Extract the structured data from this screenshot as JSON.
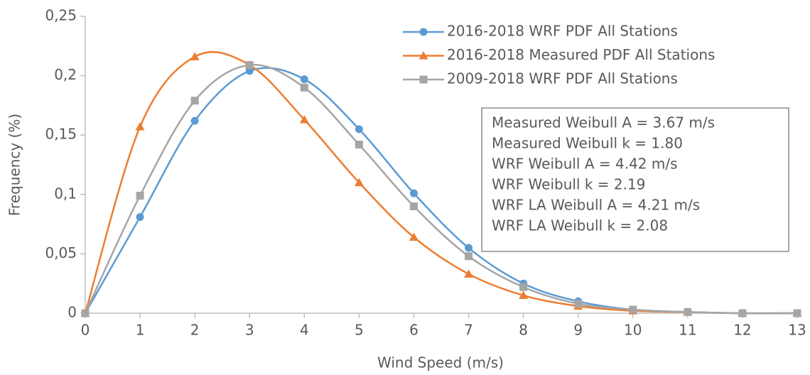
{
  "chart_data": {
    "type": "line",
    "x_label": "Wind Speed (m/s)",
    "y_label": "Frequency (%)",
    "x": [
      0,
      1,
      2,
      3,
      4,
      5,
      6,
      7,
      8,
      9,
      10,
      11,
      12,
      13
    ],
    "xlim": [
      0,
      13
    ],
    "xticks": [
      0,
      1,
      2,
      3,
      4,
      5,
      6,
      7,
      8,
      9,
      10,
      11,
      12,
      13
    ],
    "ylim": [
      0,
      0.25
    ],
    "yticks": [
      0,
      {
        "value": 0.05,
        "label": "0,05"
      },
      {
        "value": 0.1,
        "label": "0,1"
      },
      {
        "value": 0.15,
        "label": "0,15"
      },
      {
        "value": 0.2,
        "label": "0,2"
      },
      {
        "value": 0.25,
        "label": "0,25"
      }
    ],
    "smooth": true,
    "series": [
      {
        "name": "2016-2018 WRF PDF All Stations",
        "color": "#5b9bd5",
        "marker": "circle",
        "values": [
          0,
          0.081,
          0.162,
          0.204,
          0.197,
          0.155,
          0.101,
          0.055,
          0.025,
          0.01,
          0.003,
          0.001,
          0,
          0
        ]
      },
      {
        "name": "2016-2018 Measured PDF All Stations",
        "color": "#ed7d31",
        "marker": "triangle",
        "values": [
          0,
          0.157,
          0.216,
          0.209,
          0.163,
          0.11,
          0.064,
          0.033,
          0.015,
          0.006,
          0.002,
          0.001,
          0,
          0
        ]
      },
      {
        "name": "2009-2018 WRF PDF All Stations",
        "color": "#a5a5a5",
        "marker": "square",
        "values": [
          0,
          0.099,
          0.179,
          0.209,
          0.19,
          0.142,
          0.09,
          0.048,
          0.022,
          0.008,
          0.003,
          0.001,
          0,
          0
        ]
      }
    ],
    "annotations": [
      "Measured Weibull A = 3.67 m/s",
      "Measured Weibull k = 1.80",
      "WRF Weibull A = 4.42 m/s",
      "WRF Weibull k = 2.19",
      "WRF LA Weibull A = 4.21 m/s",
      "WRF LA Weibull k = 2.08"
    ]
  }
}
